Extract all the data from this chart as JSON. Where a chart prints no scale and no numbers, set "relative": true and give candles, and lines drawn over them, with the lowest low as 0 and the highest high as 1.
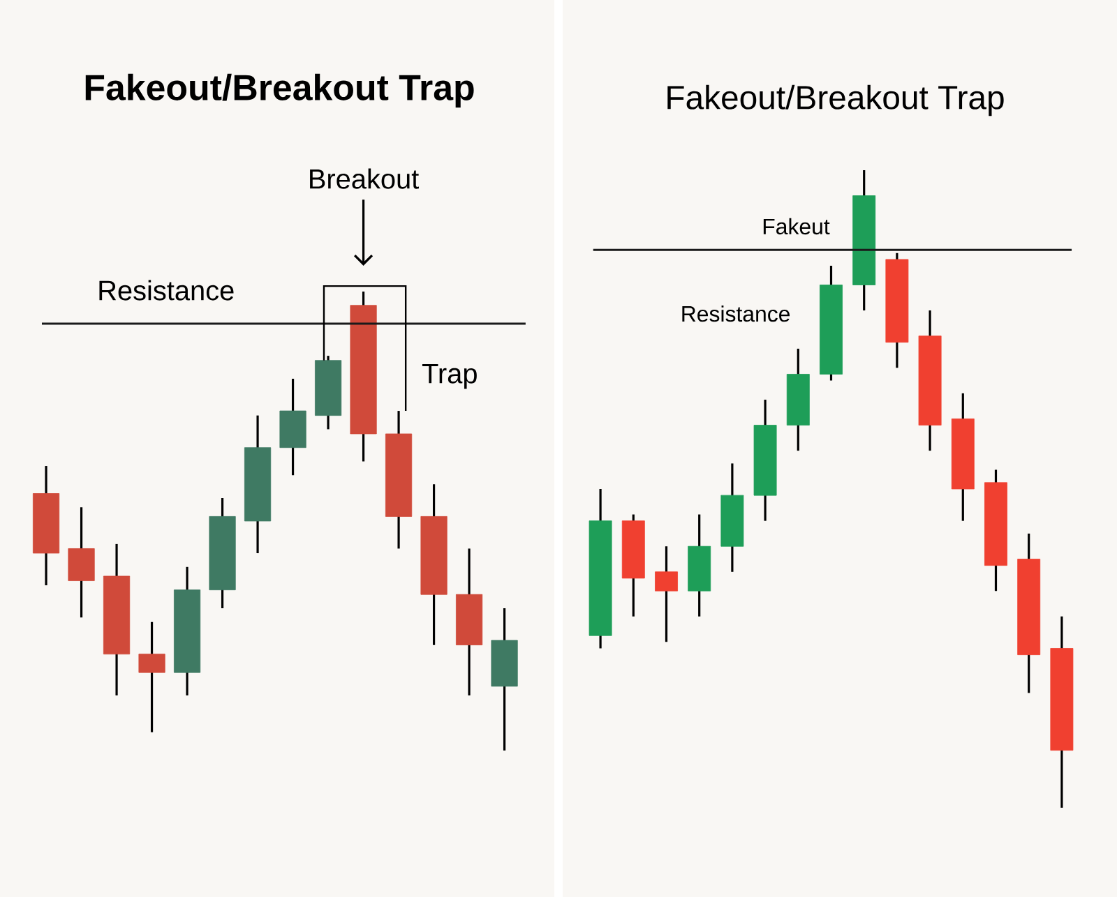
{
  "chart_data": [
    {
      "type": "candlestick",
      "title": "Fakeout/Breakout Trap",
      "relative": true,
      "categories": [
        null,
        null,
        null,
        null,
        null,
        null,
        null,
        null,
        null,
        null,
        null,
        null,
        null,
        null
      ],
      "ohlc": [
        [
          0.56,
          0.62,
          0.36,
          0.43
        ],
        [
          0.44,
          0.53,
          0.29,
          0.37
        ],
        [
          0.38,
          0.45,
          0.12,
          0.21
        ],
        [
          0.21,
          0.28,
          0.04,
          0.17
        ],
        [
          0.17,
          0.4,
          0.12,
          0.35
        ],
        [
          0.35,
          0.55,
          0.31,
          0.51
        ],
        [
          0.5,
          0.73,
          0.43,
          0.66
        ],
        [
          0.66,
          0.81,
          0.6,
          0.74
        ],
        [
          0.73,
          0.86,
          0.7,
          0.85
        ],
        [
          0.97,
          1,
          0.63,
          0.69
        ],
        [
          0.69,
          0.74,
          0.44,
          0.51
        ],
        [
          0.51,
          0.58,
          0.23,
          0.34
        ],
        [
          0.34,
          0.44,
          0.12,
          0.23
        ],
        [
          0.14,
          0.31,
          0,
          0.24
        ]
      ],
      "colors": [
        "#d04a3a",
        "#d04a3a",
        "#d04a3a",
        "#d04a3a",
        "#3f7a63",
        "#3f7a63",
        "#3f7a63",
        "#3f7a63",
        "#3f7a63",
        "#d04a3a",
        "#d04a3a",
        "#d04a3a",
        "#d04a3a",
        "#3f7a63"
      ],
      "ref_lines": [
        {
          "axis": "y",
          "value": 0.93,
          "label": "Resistance",
          "color": "#1a1a1a"
        }
      ],
      "annotations": [
        "Breakout",
        "Trap"
      ]
    },
    {
      "type": "candlestick",
      "title": "Fakeout/Breakout Trap",
      "relative": true,
      "categories": [
        null,
        null,
        null,
        null,
        null,
        null,
        null,
        null,
        null,
        null,
        null,
        null,
        null,
        null,
        null
      ],
      "ohlc": [
        [
          0.27,
          0.5,
          0.25,
          0.45
        ],
        [
          0.45,
          0.46,
          0.3,
          0.36
        ],
        [
          0.37,
          0.41,
          0.26,
          0.34
        ],
        [
          0.34,
          0.46,
          0.3,
          0.41
        ],
        [
          0.41,
          0.54,
          0.37,
          0.49
        ],
        [
          0.49,
          0.64,
          0.45,
          0.6
        ],
        [
          0.6,
          0.72,
          0.56,
          0.68
        ],
        [
          0.68,
          0.85,
          0.67,
          0.82
        ],
        [
          0.82,
          1,
          0.78,
          0.96
        ],
        [
          0.86,
          0.87,
          0.69,
          0.73
        ],
        [
          0.74,
          0.78,
          0.56,
          0.6
        ],
        [
          0.61,
          0.65,
          0.45,
          0.5
        ],
        [
          0.51,
          0.53,
          0.34,
          0.38
        ],
        [
          0.39,
          0.43,
          0.18,
          0.24
        ],
        [
          0.25,
          0.3,
          0,
          0.09
        ]
      ],
      "colors": [
        "#1e9e58",
        "#f04030",
        "#f04030",
        "#1e9e58",
        "#1e9e58",
        "#1e9e58",
        "#1e9e58",
        "#1e9e58",
        "#1e9e58",
        "#f04030",
        "#f04030",
        "#f04030",
        "#f04030",
        "#f04030",
        "#f04030"
      ],
      "ref_lines": [
        {
          "axis": "y",
          "value": 0.875,
          "label": "Resistance",
          "color": "#1a1a1a"
        }
      ],
      "annotations": [
        "Fakeut"
      ]
    }
  ]
}
